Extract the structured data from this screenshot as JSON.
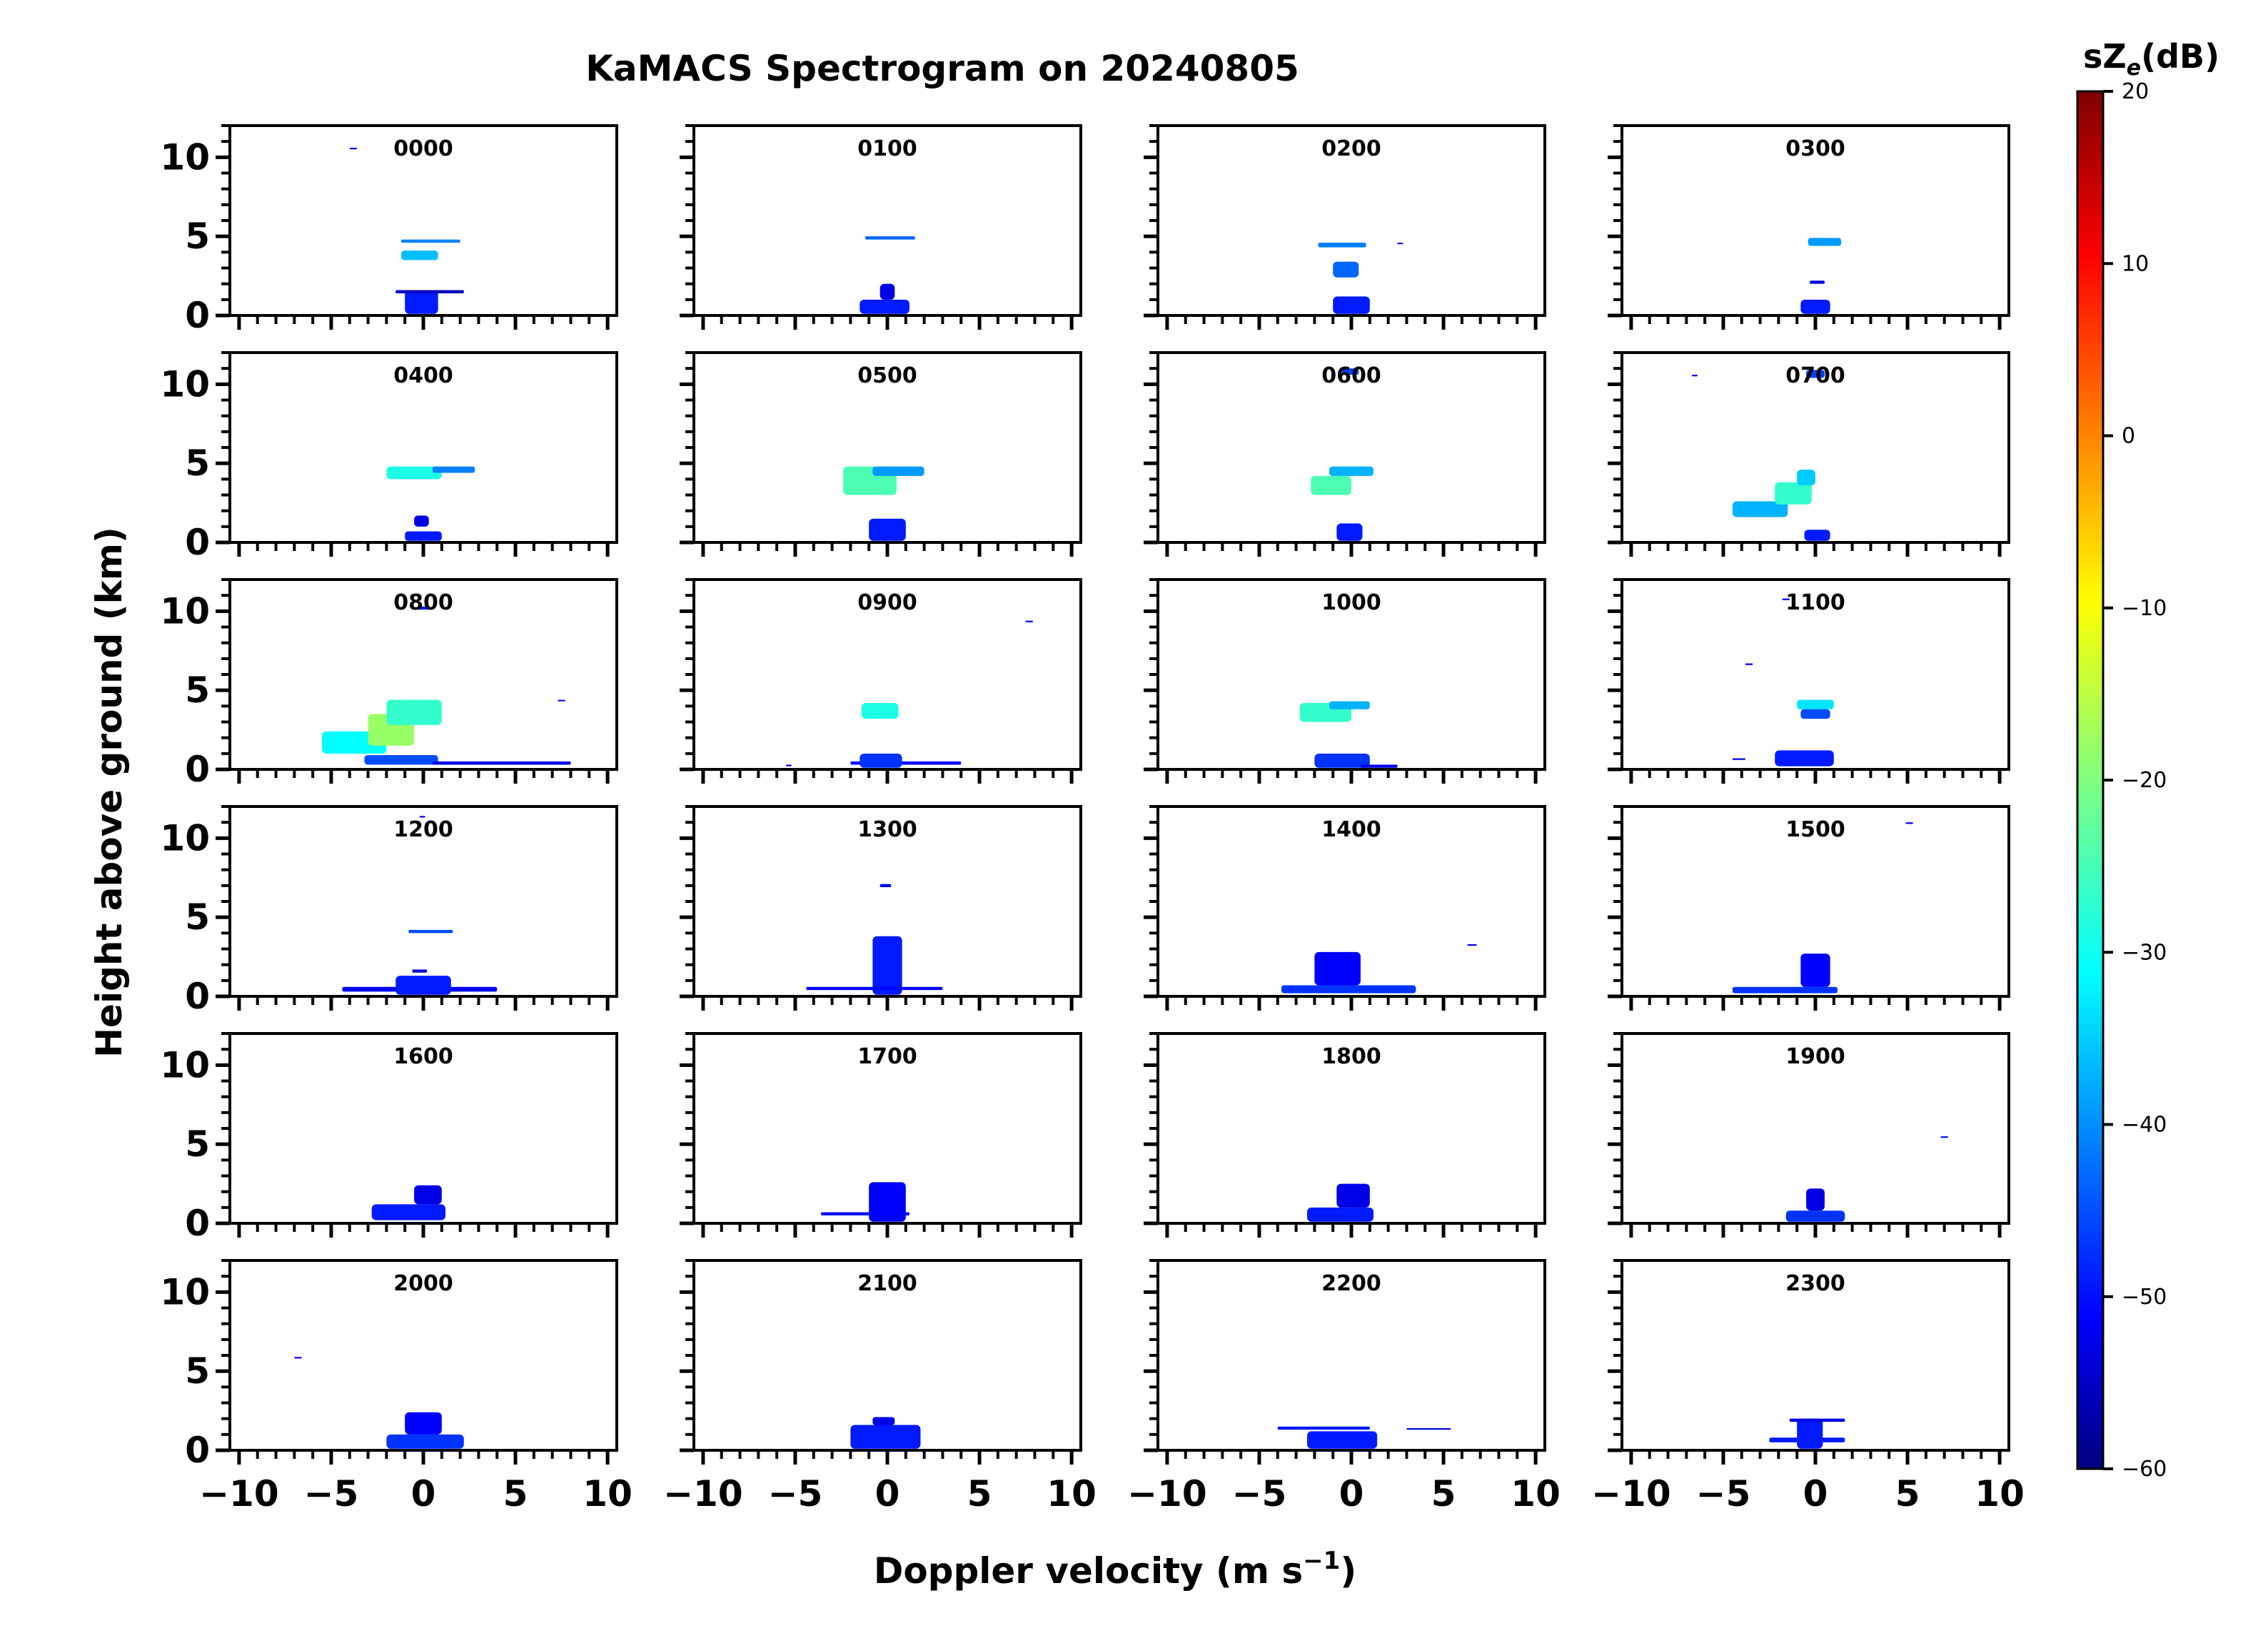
{
  "chart_data": {
    "type": "heatmap",
    "title": "KaMACS Spectrogram on 20240805",
    "xlabel": "Doppler velocity (m s",
    "xlabel_sup": "−1",
    "xlabel_end": ")",
    "ylabel": "Height above ground (km)",
    "xlim": [
      -10.5,
      10.5
    ],
    "ylim": [
      0,
      12
    ],
    "xticks": [
      -10,
      -5,
      0,
      5,
      10
    ],
    "yticks": [
      0,
      5,
      10
    ],
    "xtick_labels": [
      "−10",
      "−5",
      "0",
      "5",
      "10"
    ],
    "ytick_labels": [
      "0",
      "5",
      "10"
    ],
    "colorbar": {
      "label_pre": "sZ",
      "label_sub": "e",
      "label_post": "(dB)",
      "range": [
        -60,
        20
      ],
      "ticks": [
        20,
        10,
        0,
        -10,
        -20,
        -30,
        -40,
        -50,
        -60
      ],
      "tick_labels": [
        "20",
        "10",
        "0",
        "−10",
        "−20",
        "−30",
        "−40",
        "−50",
        "−60"
      ],
      "colormap": "jet"
    },
    "panels": [
      {
        "label": "0000",
        "features": [
          {
            "vmin": -1.2,
            "vmax": 2.0,
            "hmin": 4.6,
            "hmax": 4.8,
            "dB": -40
          },
          {
            "vmin": -1.2,
            "vmax": 0.8,
            "hmin": 3.5,
            "hmax": 4.1,
            "dB": -35
          },
          {
            "vmin": -1.0,
            "vmax": 0.8,
            "hmin": 0.1,
            "hmax": 1.6,
            "dB": -48
          },
          {
            "vmin": -1.5,
            "vmax": 2.2,
            "hmin": 1.4,
            "hmax": 1.6,
            "dB": -55
          },
          {
            "vmin": -4.0,
            "vmax": -3.6,
            "hmin": 10.5,
            "hmax": 10.6,
            "dB": -50
          }
        ]
      },
      {
        "label": "0100",
        "features": [
          {
            "vmin": -1.2,
            "vmax": 1.5,
            "hmin": 4.8,
            "hmax": 5.0,
            "dB": -42
          },
          {
            "vmin": -1.5,
            "vmax": 1.2,
            "hmin": 0.1,
            "hmax": 1.0,
            "dB": -48
          },
          {
            "vmin": -0.4,
            "vmax": 0.4,
            "hmin": 1.0,
            "hmax": 2.0,
            "dB": -52
          }
        ]
      },
      {
        "label": "0200",
        "features": [
          {
            "vmin": -1.8,
            "vmax": 0.8,
            "hmin": 4.3,
            "hmax": 4.6,
            "dB": -40
          },
          {
            "vmin": -1.0,
            "vmax": 0.4,
            "hmin": 2.4,
            "hmax": 3.4,
            "dB": -42
          },
          {
            "vmin": -1.0,
            "vmax": 1.0,
            "hmin": 0.1,
            "hmax": 1.2,
            "dB": -48
          },
          {
            "vmin": 2.5,
            "vmax": 2.8,
            "hmin": 4.5,
            "hmax": 4.6,
            "dB": -50
          }
        ]
      },
      {
        "label": "0300",
        "features": [
          {
            "vmin": -0.4,
            "vmax": 1.4,
            "hmin": 4.4,
            "hmax": 4.9,
            "dB": -38
          },
          {
            "vmin": -0.8,
            "vmax": 0.8,
            "hmin": 0.1,
            "hmax": 1.0,
            "dB": -48
          },
          {
            "vmin": -0.3,
            "vmax": 0.5,
            "hmin": 2.0,
            "hmax": 2.2,
            "dB": -52
          }
        ]
      },
      {
        "label": "0400",
        "features": [
          {
            "vmin": -2.0,
            "vmax": 1.0,
            "hmin": 4.0,
            "hmax": 4.8,
            "dB": -28
          },
          {
            "vmin": 0.5,
            "vmax": 2.8,
            "hmin": 4.4,
            "hmax": 4.8,
            "dB": -40
          },
          {
            "vmin": -1.0,
            "vmax": 1.0,
            "hmin": 0.1,
            "hmax": 0.7,
            "dB": -48
          },
          {
            "vmin": -0.5,
            "vmax": 0.3,
            "hmin": 1.0,
            "hmax": 1.7,
            "dB": -52
          }
        ]
      },
      {
        "label": "0500",
        "features": [
          {
            "vmin": -2.4,
            "vmax": 0.5,
            "hmin": 3.0,
            "hmax": 4.8,
            "dB": -24
          },
          {
            "vmin": -0.8,
            "vmax": 2.0,
            "hmin": 4.2,
            "hmax": 4.8,
            "dB": -38
          },
          {
            "vmin": -1.0,
            "vmax": 1.0,
            "hmin": 0.1,
            "hmax": 1.5,
            "dB": -48
          }
        ]
      },
      {
        "label": "0600",
        "features": [
          {
            "vmin": -2.2,
            "vmax": 0.0,
            "hmin": 3.0,
            "hmax": 4.2,
            "dB": -24
          },
          {
            "vmin": -1.2,
            "vmax": 1.2,
            "hmin": 4.2,
            "hmax": 4.8,
            "dB": -36
          },
          {
            "vmin": -0.8,
            "vmax": 0.6,
            "hmin": 0.1,
            "hmax": 1.2,
            "dB": -48
          },
          {
            "vmin": -0.5,
            "vmax": 0.4,
            "hmin": 10.6,
            "hmax": 11.0,
            "dB": -45
          }
        ]
      },
      {
        "label": "0700",
        "features": [
          {
            "vmin": -4.5,
            "vmax": -1.5,
            "hmin": 1.6,
            "hmax": 2.6,
            "dB": -36
          },
          {
            "vmin": -2.2,
            "vmax": -0.2,
            "hmin": 2.4,
            "hmax": 3.8,
            "dB": -26
          },
          {
            "vmin": -1.0,
            "vmax": 0.0,
            "hmin": 3.6,
            "hmax": 4.6,
            "dB": -34
          },
          {
            "vmin": -0.6,
            "vmax": 0.8,
            "hmin": 0.1,
            "hmax": 0.8,
            "dB": -48
          },
          {
            "vmin": -0.5,
            "vmax": 0.5,
            "hmin": 10.4,
            "hmax": 10.9,
            "dB": -45
          },
          {
            "vmin": -6.7,
            "vmax": -6.4,
            "hmin": 10.5,
            "hmax": 10.6,
            "dB": -50
          }
        ]
      },
      {
        "label": "0800",
        "features": [
          {
            "vmin": -5.5,
            "vmax": -2.0,
            "hmin": 1.0,
            "hmax": 2.4,
            "dB": -30
          },
          {
            "vmin": -3.0,
            "vmax": -0.5,
            "hmin": 1.5,
            "hmax": 3.5,
            "dB": -18
          },
          {
            "vmin": -2.0,
            "vmax": 1.0,
            "hmin": 2.8,
            "hmax": 4.4,
            "dB": -26
          },
          {
            "vmin": -3.2,
            "vmax": 0.8,
            "hmin": 0.3,
            "hmax": 0.9,
            "dB": -44
          },
          {
            "vmin": 0.5,
            "vmax": 8.0,
            "hmin": 0.3,
            "hmax": 0.5,
            "dB": -52
          },
          {
            "vmin": 7.3,
            "vmax": 7.7,
            "hmin": 4.3,
            "hmax": 4.4,
            "dB": -50
          },
          {
            "vmin": -0.3,
            "vmax": 0.3,
            "hmin": 10.1,
            "hmax": 10.3,
            "dB": -48
          }
        ]
      },
      {
        "label": "0900",
        "features": [
          {
            "vmin": -1.4,
            "vmax": 0.6,
            "hmin": 3.2,
            "hmax": 4.2,
            "dB": -28
          },
          {
            "vmin": -2.0,
            "vmax": 4.0,
            "hmin": 0.3,
            "hmax": 0.5,
            "dB": -50
          },
          {
            "vmin": -1.5,
            "vmax": 0.8,
            "hmin": 0.1,
            "hmax": 1.0,
            "dB": -46
          },
          {
            "vmin": 7.5,
            "vmax": 7.9,
            "hmin": 9.3,
            "hmax": 9.4,
            "dB": -50
          },
          {
            "vmin": -5.5,
            "vmax": -5.2,
            "hmin": 0.2,
            "hmax": 0.3,
            "dB": -52
          }
        ]
      },
      {
        "label": "1000",
        "features": [
          {
            "vmin": -2.8,
            "vmax": 0.0,
            "hmin": 3.0,
            "hmax": 4.2,
            "dB": -26
          },
          {
            "vmin": -1.2,
            "vmax": 1.0,
            "hmin": 3.8,
            "hmax": 4.3,
            "dB": -36
          },
          {
            "vmin": -2.0,
            "vmax": 1.0,
            "hmin": 0.1,
            "hmax": 1.0,
            "dB": -46
          },
          {
            "vmin": 0.5,
            "vmax": 2.5,
            "hmin": 0.1,
            "hmax": 0.3,
            "dB": -52
          }
        ]
      },
      {
        "label": "1100",
        "features": [
          {
            "vmin": -1.0,
            "vmax": 1.0,
            "hmin": 3.8,
            "hmax": 4.4,
            "dB": -32
          },
          {
            "vmin": -0.8,
            "vmax": 0.8,
            "hmin": 3.2,
            "hmax": 3.8,
            "dB": -44
          },
          {
            "vmin": -2.2,
            "vmax": 1.0,
            "hmin": 0.2,
            "hmax": 1.2,
            "dB": -48
          },
          {
            "vmin": -3.8,
            "vmax": -3.4,
            "hmin": 6.6,
            "hmax": 6.7,
            "dB": -50
          },
          {
            "vmin": -1.8,
            "vmax": -1.4,
            "hmin": 10.7,
            "hmax": 10.8,
            "dB": -50
          },
          {
            "vmin": -4.5,
            "vmax": -3.8,
            "hmin": 0.6,
            "hmax": 0.7,
            "dB": -52
          }
        ]
      },
      {
        "label": "1200",
        "features": [
          {
            "vmin": -0.8,
            "vmax": 1.6,
            "hmin": 4.0,
            "hmax": 4.2,
            "dB": -44
          },
          {
            "vmin": -4.4,
            "vmax": 4.0,
            "hmin": 0.3,
            "hmax": 0.6,
            "dB": -50
          },
          {
            "vmin": -1.5,
            "vmax": 1.5,
            "hmin": 0.1,
            "hmax": 1.3,
            "dB": -48
          },
          {
            "vmin": -0.6,
            "vmax": 0.2,
            "hmin": 1.5,
            "hmax": 1.7,
            "dB": -54
          },
          {
            "vmin": -0.2,
            "vmax": 0.1,
            "hmin": 11.3,
            "hmax": 11.4,
            "dB": -50
          }
        ]
      },
      {
        "label": "1300",
        "features": [
          {
            "vmin": -0.8,
            "vmax": 0.8,
            "hmin": 0.1,
            "hmax": 3.8,
            "dB": -48
          },
          {
            "vmin": -4.4,
            "vmax": 3.0,
            "hmin": 0.4,
            "hmax": 0.6,
            "dB": -50
          },
          {
            "vmin": -0.4,
            "vmax": 0.2,
            "hmin": 6.9,
            "hmax": 7.1,
            "dB": -50
          }
        ]
      },
      {
        "label": "1400",
        "features": [
          {
            "vmin": -3.8,
            "vmax": 3.5,
            "hmin": 0.2,
            "hmax": 0.7,
            "dB": -46
          },
          {
            "vmin": -2.0,
            "vmax": 0.5,
            "hmin": 0.7,
            "hmax": 2.8,
            "dB": -50
          },
          {
            "vmin": 6.3,
            "vmax": 6.8,
            "hmin": 3.2,
            "hmax": 3.3,
            "dB": -50
          }
        ]
      },
      {
        "label": "1500",
        "features": [
          {
            "vmin": -4.5,
            "vmax": 1.2,
            "hmin": 0.2,
            "hmax": 0.6,
            "dB": -46
          },
          {
            "vmin": -0.8,
            "vmax": 0.8,
            "hmin": 0.6,
            "hmax": 2.7,
            "dB": -50
          },
          {
            "vmin": 4.9,
            "vmax": 5.3,
            "hmin": 10.9,
            "hmax": 11.0,
            "dB": -50
          }
        ]
      },
      {
        "label": "1600",
        "features": [
          {
            "vmin": -2.8,
            "vmax": 1.2,
            "hmin": 0.2,
            "hmax": 1.2,
            "dB": -48
          },
          {
            "vmin": -0.5,
            "vmax": 1.0,
            "hmin": 1.2,
            "hmax": 2.4,
            "dB": -52
          }
        ]
      },
      {
        "label": "1700",
        "features": [
          {
            "vmin": -3.6,
            "vmax": 1.2,
            "hmin": 0.5,
            "hmax": 0.7,
            "dB": -50
          },
          {
            "vmin": -1.0,
            "vmax": 1.0,
            "hmin": 0.1,
            "hmax": 2.6,
            "dB": -50
          }
        ]
      },
      {
        "label": "1800",
        "features": [
          {
            "vmin": -2.4,
            "vmax": 1.2,
            "hmin": 0.1,
            "hmax": 1.0,
            "dB": -48
          },
          {
            "vmin": -0.8,
            "vmax": 1.0,
            "hmin": 1.0,
            "hmax": 2.5,
            "dB": -52
          }
        ]
      },
      {
        "label": "1900",
        "features": [
          {
            "vmin": -1.6,
            "vmax": 1.6,
            "hmin": 0.1,
            "hmax": 0.8,
            "dB": -46
          },
          {
            "vmin": -0.5,
            "vmax": 0.5,
            "hmin": 0.8,
            "hmax": 2.2,
            "dB": -52
          },
          {
            "vmin": 6.8,
            "vmax": 7.2,
            "hmin": 5.4,
            "hmax": 5.5,
            "dB": -50
          }
        ]
      },
      {
        "label": "2000",
        "features": [
          {
            "vmin": -2.0,
            "vmax": 2.2,
            "hmin": 0.1,
            "hmax": 1.0,
            "dB": -46
          },
          {
            "vmin": -1.0,
            "vmax": 1.0,
            "hmin": 1.0,
            "hmax": 2.4,
            "dB": -50
          },
          {
            "vmin": -7.0,
            "vmax": -6.6,
            "hmin": 5.8,
            "hmax": 5.9,
            "dB": -50
          }
        ]
      },
      {
        "label": "2100",
        "features": [
          {
            "vmin": -2.0,
            "vmax": 1.8,
            "hmin": 0.1,
            "hmax": 1.6,
            "dB": -48
          },
          {
            "vmin": -0.8,
            "vmax": 0.4,
            "hmin": 1.6,
            "hmax": 2.1,
            "dB": -52
          }
        ]
      },
      {
        "label": "2200",
        "features": [
          {
            "vmin": -4.0,
            "vmax": 1.0,
            "hmin": 1.3,
            "hmax": 1.5,
            "dB": -48
          },
          {
            "vmin": 3.0,
            "vmax": 5.4,
            "hmin": 1.3,
            "hmax": 1.4,
            "dB": -52
          },
          {
            "vmin": -2.4,
            "vmax": 1.4,
            "hmin": 0.1,
            "hmax": 1.2,
            "dB": -48
          }
        ]
      },
      {
        "label": "2300",
        "features": [
          {
            "vmin": -2.5,
            "vmax": 1.6,
            "hmin": 0.5,
            "hmax": 0.8,
            "dB": -48
          },
          {
            "vmin": -1.0,
            "vmax": 0.4,
            "hmin": 0.1,
            "hmax": 2.0,
            "dB": -48
          },
          {
            "vmin": -1.4,
            "vmax": 1.6,
            "hmin": 1.8,
            "hmax": 2.0,
            "dB": -52
          }
        ]
      }
    ]
  }
}
